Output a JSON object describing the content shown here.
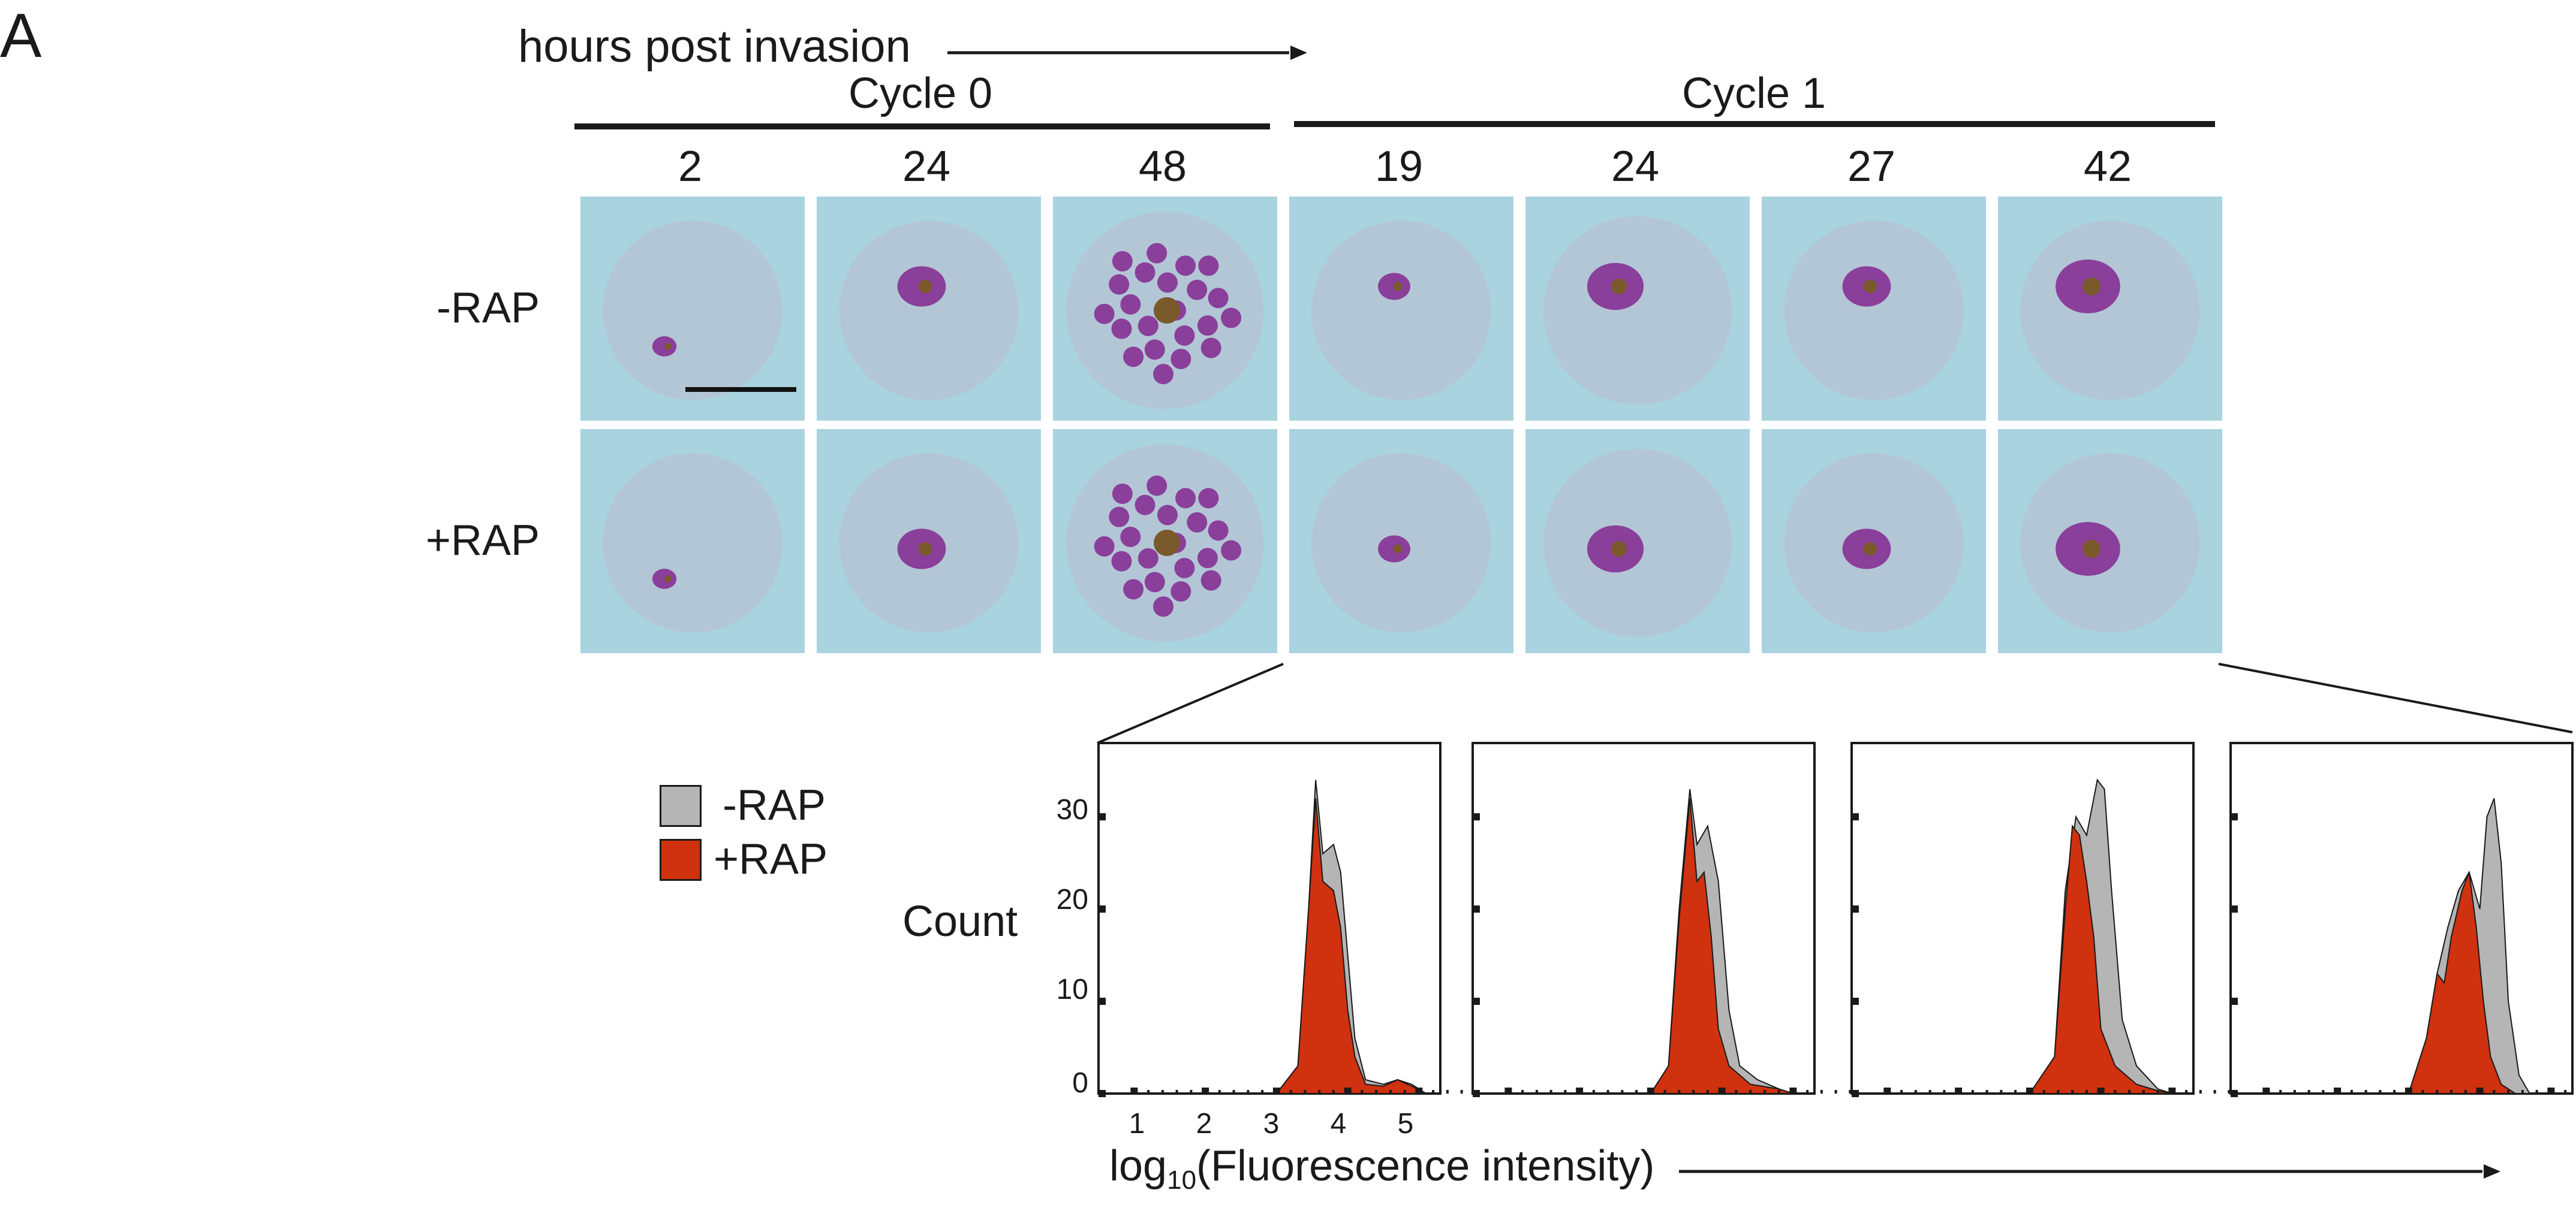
{
  "panel_letter": "A",
  "timeline_label": "hours post invasion",
  "cycles": [
    {
      "label": "Cycle 0",
      "times": [
        "2",
        "24",
        "48"
      ]
    },
    {
      "label": "Cycle 1",
      "times": [
        "19",
        "24",
        "27",
        "42"
      ]
    }
  ],
  "rows": [
    "-RAP",
    "+RAP"
  ],
  "colors": {
    "minus_rap": "#b5b5b5",
    "plus_rap": "#d0310f",
    "cell_background": "#a9d3df",
    "rbc": "#b3c6d6",
    "parasite": "#8a3f9a"
  },
  "legend": {
    "minus_rap": "-RAP",
    "plus_rap": "+RAP"
  },
  "histogram_axis": {
    "ylabel": "Count",
    "xlabel_prefix": "log",
    "xlabel_sub": "10",
    "xlabel_suffix": "(Fluorescence intensity)",
    "yticks": [
      "0",
      "10",
      "20",
      "30"
    ],
    "xticks": [
      "1",
      "2",
      "3",
      "4",
      "5"
    ]
  },
  "chart_data": [
    {
      "type": "area",
      "time_hpi": "19",
      "xlim": [
        0.5,
        5.3
      ],
      "ylim": [
        0,
        38
      ],
      "series": [
        {
          "name": "-RAP",
          "points": [
            [
              3.0,
              0
            ],
            [
              3.3,
              3
            ],
            [
              3.45,
              20
            ],
            [
              3.55,
              34
            ],
            [
              3.65,
              26
            ],
            [
              3.8,
              27
            ],
            [
              3.9,
              24
            ],
            [
              4.0,
              15
            ],
            [
              4.1,
              6
            ],
            [
              4.25,
              1.5
            ],
            [
              4.5,
              1
            ],
            [
              4.7,
              1.5
            ],
            [
              4.9,
              1
            ],
            [
              5.1,
              0
            ]
          ]
        },
        {
          "name": "+RAP",
          "points": [
            [
              3.0,
              0
            ],
            [
              3.3,
              3
            ],
            [
              3.45,
              20
            ],
            [
              3.55,
              32
            ],
            [
              3.65,
              23
            ],
            [
              3.8,
              22
            ],
            [
              3.9,
              18
            ],
            [
              4.0,
              9
            ],
            [
              4.1,
              4
            ],
            [
              4.25,
              1
            ],
            [
              4.5,
              0.8
            ],
            [
              4.7,
              1.5
            ],
            [
              4.9,
              0.8
            ],
            [
              5.1,
              0
            ]
          ]
        }
      ]
    },
    {
      "type": "area",
      "time_hpi": "24",
      "xlim": [
        0.5,
        5.3
      ],
      "ylim": [
        0,
        38
      ],
      "series": [
        {
          "name": "-RAP",
          "points": [
            [
              3.0,
              0
            ],
            [
              3.25,
              3
            ],
            [
              3.4,
              20
            ],
            [
              3.55,
              33
            ],
            [
              3.65,
              27
            ],
            [
              3.8,
              29
            ],
            [
              3.95,
              23
            ],
            [
              4.1,
              9
            ],
            [
              4.25,
              3
            ],
            [
              4.5,
              1.5
            ],
            [
              4.8,
              0.5
            ],
            [
              5.0,
              0
            ]
          ]
        },
        {
          "name": "+RAP",
          "points": [
            [
              3.0,
              0
            ],
            [
              3.25,
              3
            ],
            [
              3.4,
              19
            ],
            [
              3.55,
              32
            ],
            [
              3.65,
              23
            ],
            [
              3.75,
              24
            ],
            [
              3.85,
              17
            ],
            [
              3.95,
              7
            ],
            [
              4.1,
              3
            ],
            [
              4.4,
              1
            ],
            [
              4.8,
              0.5
            ],
            [
              5.0,
              0
            ]
          ]
        }
      ]
    },
    {
      "type": "area",
      "time_hpi": "27",
      "xlim": [
        0.5,
        5.3
      ],
      "ylim": [
        0,
        38
      ],
      "series": [
        {
          "name": "-RAP",
          "points": [
            [
              3.0,
              0
            ],
            [
              3.35,
              4
            ],
            [
              3.5,
              22
            ],
            [
              3.65,
              30
            ],
            [
              3.8,
              28
            ],
            [
              3.95,
              34
            ],
            [
              4.05,
              33
            ],
            [
              4.15,
              22
            ],
            [
              4.3,
              8
            ],
            [
              4.5,
              3
            ],
            [
              4.8,
              0.5
            ],
            [
              5.0,
              0
            ]
          ]
        },
        {
          "name": "+RAP",
          "points": [
            [
              3.0,
              0
            ],
            [
              3.35,
              4
            ],
            [
              3.5,
              20
            ],
            [
              3.6,
              29
            ],
            [
              3.7,
              28
            ],
            [
              3.8,
              23
            ],
            [
              3.9,
              17
            ],
            [
              4.0,
              7
            ],
            [
              4.2,
              3
            ],
            [
              4.5,
              1
            ],
            [
              4.8,
              0.3
            ],
            [
              5.0,
              0
            ]
          ]
        }
      ]
    },
    {
      "type": "area",
      "time_hpi": "42",
      "xlim": [
        0.5,
        5.3
      ],
      "ylim": [
        0,
        38
      ],
      "series": [
        {
          "name": "-RAP",
          "points": [
            [
              3.0,
              0
            ],
            [
              3.25,
              6
            ],
            [
              3.4,
              13
            ],
            [
              3.55,
              18
            ],
            [
              3.7,
              22
            ],
            [
              3.85,
              24
            ],
            [
              4.0,
              20
            ],
            [
              4.1,
              30
            ],
            [
              4.2,
              32
            ],
            [
              4.3,
              25
            ],
            [
              4.4,
              10
            ],
            [
              4.55,
              2
            ],
            [
              4.7,
              0
            ]
          ]
        },
        {
          "name": "+RAP",
          "points": [
            [
              3.0,
              0
            ],
            [
              3.25,
              6
            ],
            [
              3.4,
              13
            ],
            [
              3.5,
              12
            ],
            [
              3.6,
              17
            ],
            [
              3.75,
              22
            ],
            [
              3.85,
              24
            ],
            [
              3.95,
              18
            ],
            [
              4.05,
              10
            ],
            [
              4.15,
              4
            ],
            [
              4.3,
              1
            ],
            [
              4.5,
              0
            ]
          ]
        }
      ]
    }
  ]
}
